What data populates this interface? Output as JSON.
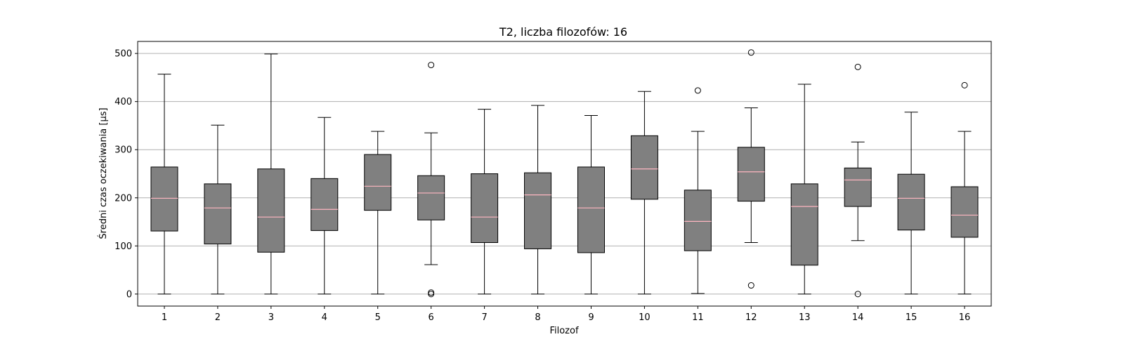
{
  "chart_data": {
    "type": "box",
    "title": "T2, liczba filozofów: 16",
    "xlabel": "Filozof",
    "ylabel": "Średni czas oczekiwania [µs]",
    "categories": [
      "1",
      "2",
      "3",
      "4",
      "5",
      "6",
      "7",
      "8",
      "9",
      "10",
      "11",
      "12",
      "13",
      "14",
      "15",
      "16"
    ],
    "ylim": [
      -25,
      525
    ],
    "yticks": [
      0,
      100,
      200,
      300,
      400,
      500
    ],
    "grid": "y",
    "colors": {
      "box_fill": "#808080",
      "median": "#ffb6c1",
      "grid": "#b0b0b0",
      "line": "#000000"
    },
    "boxes": [
      {
        "label": "1",
        "whislo": 0,
        "q1": 131,
        "med": 199,
        "q3": 264,
        "whishi": 457,
        "fliers": []
      },
      {
        "label": "2",
        "whislo": 0,
        "q1": 104,
        "med": 179,
        "q3": 229,
        "whishi": 351,
        "fliers": []
      },
      {
        "label": "3",
        "whislo": 0,
        "q1": 87,
        "med": 160,
        "q3": 260,
        "whishi": 499,
        "fliers": []
      },
      {
        "label": "4",
        "whislo": 0,
        "q1": 132,
        "med": 176,
        "q3": 240,
        "whishi": 367,
        "fliers": []
      },
      {
        "label": "5",
        "whislo": 0,
        "q1": 174,
        "med": 224,
        "q3": 290,
        "whishi": 338,
        "fliers": []
      },
      {
        "label": "6",
        "whislo": 61,
        "q1": 154,
        "med": 210,
        "q3": 246,
        "whishi": 335,
        "fliers": [
          476,
          3,
          0
        ]
      },
      {
        "label": "7",
        "whislo": 0,
        "q1": 107,
        "med": 160,
        "q3": 250,
        "whishi": 384,
        "fliers": []
      },
      {
        "label": "8",
        "whislo": 0,
        "q1": 94,
        "med": 206,
        "q3": 252,
        "whishi": 392,
        "fliers": []
      },
      {
        "label": "9",
        "whislo": 0,
        "q1": 86,
        "med": 179,
        "q3": 264,
        "whishi": 371,
        "fliers": []
      },
      {
        "label": "10",
        "whislo": 0,
        "q1": 197,
        "med": 260,
        "q3": 329,
        "whishi": 421,
        "fliers": []
      },
      {
        "label": "11",
        "whislo": 1,
        "q1": 90,
        "med": 151,
        "q3": 216,
        "whishi": 338,
        "fliers": [
          423
        ]
      },
      {
        "label": "12",
        "whislo": 107,
        "q1": 193,
        "med": 254,
        "q3": 305,
        "whishi": 387,
        "fliers": [
          502,
          18
        ]
      },
      {
        "label": "13",
        "whislo": 0,
        "q1": 60,
        "med": 182,
        "q3": 229,
        "whishi": 436,
        "fliers": []
      },
      {
        "label": "14",
        "whislo": 111,
        "q1": 182,
        "med": 237,
        "q3": 262,
        "whishi": 316,
        "fliers": [
          472,
          0
        ]
      },
      {
        "label": "15",
        "whislo": 0,
        "q1": 133,
        "med": 199,
        "q3": 249,
        "whishi": 378,
        "fliers": []
      },
      {
        "label": "16",
        "whislo": 0,
        "q1": 118,
        "med": 164,
        "q3": 223,
        "whishi": 338,
        "fliers": [
          434
        ]
      }
    ]
  }
}
